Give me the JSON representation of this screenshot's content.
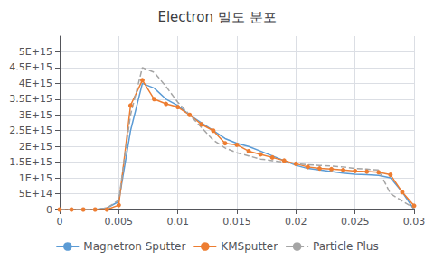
{
  "chart_data": {
    "type": "line",
    "title": "Electron 밀도 분포",
    "xlim": [
      0,
      0.03
    ],
    "xticks": [
      0,
      0.005,
      0.01,
      0.015,
      0.02,
      0.025,
      0.03
    ],
    "ylim": [
      0,
      5500000000000000.0
    ],
    "yticks": [
      0,
      {
        "value": 500000000000000.0,
        "label": "5E+14"
      },
      {
        "value": 1000000000000000.0,
        "label": "1E+15"
      },
      {
        "value": 1500000000000000.0,
        "label": "1.5E+15"
      },
      {
        "value": 2000000000000000.0,
        "label": "2E+15"
      },
      {
        "value": 2500000000000000.0,
        "label": "2.5E+15"
      },
      {
        "value": 3000000000000000.0,
        "label": "3E+15"
      },
      {
        "value": 3500000000000000.0,
        "label": "3.5E+15"
      },
      {
        "value": 4000000000000000.0,
        "label": "4E+15"
      },
      {
        "value": 4500000000000000.0,
        "label": "4.5E+15"
      },
      {
        "value": 5000000000000000.0,
        "label": "5E+15"
      }
    ],
    "grid": true,
    "legend": "bottom",
    "series": [
      {
        "name": "Magnetron Sputter",
        "color": "#5b9bd5",
        "line_style": "solid",
        "x": [
          0,
          0.001,
          0.002,
          0.003,
          0.004,
          0.005,
          0.006,
          0.007,
          0.008,
          0.009,
          0.01,
          0.011,
          0.012,
          0.013,
          0.014,
          0.015,
          0.016,
          0.017,
          0.018,
          0.019,
          0.02,
          0.021,
          0.022,
          0.023,
          0.024,
          0.025,
          0.026,
          0.027,
          0.028,
          0.029,
          0.03
        ],
        "values": [
          0,
          0,
          0,
          0,
          50000000000000.0,
          250000000000000.0,
          2500000000000000.0,
          4000000000000000.0,
          3850000000000000.0,
          3500000000000000.0,
          3300000000000000.0,
          3000000000000000.0,
          2750000000000000.0,
          2500000000000000.0,
          2250000000000000.0,
          2100000000000000.0,
          2000000000000000.0,
          1850000000000000.0,
          1700000000000000.0,
          1550000000000000.0,
          1400000000000000.0,
          1300000000000000.0,
          1250000000000000.0,
          1200000000000000.0,
          1150000000000000.0,
          1120000000000000.0,
          1100000000000000.0,
          1080000000000000.0,
          1000000000000000.0,
          550000000000000.0,
          0
        ]
      },
      {
        "name": "KMSputter",
        "color": "#ed7d31",
        "line_style": "solid",
        "marker": "circle",
        "x": [
          0,
          0.001,
          0.002,
          0.003,
          0.004,
          0.005,
          0.006,
          0.007,
          0.008,
          0.009,
          0.01,
          0.011,
          0.012,
          0.013,
          0.014,
          0.015,
          0.016,
          0.017,
          0.018,
          0.019,
          0.02,
          0.021,
          0.022,
          0.023,
          0.024,
          0.025,
          0.026,
          0.027,
          0.028,
          0.029,
          0.03
        ],
        "values": [
          0,
          0,
          0,
          0,
          0,
          140000000000000.0,
          3300000000000000.0,
          4100000000000000.0,
          3500000000000000.0,
          3350000000000000.0,
          3250000000000000.0,
          3000000000000000.0,
          2700000000000000.0,
          2500000000000000.0,
          2100000000000000.0,
          2050000000000000.0,
          1850000000000000.0,
          1750000000000000.0,
          1650000000000000.0,
          1550000000000000.0,
          1450000000000000.0,
          1350000000000000.0,
          1300000000000000.0,
          1280000000000000.0,
          1250000000000000.0,
          1220000000000000.0,
          1200000000000000.0,
          1180000000000000.0,
          1100000000000000.0,
          550000000000000.0,
          120000000000000.0
        ]
      },
      {
        "name": "Particle Plus",
        "color": "#a5a5a5",
        "line_style": "dashed",
        "x": [
          0,
          0.001,
          0.002,
          0.003,
          0.004,
          0.005,
          0.006,
          0.007,
          0.008,
          0.009,
          0.01,
          0.011,
          0.012,
          0.013,
          0.014,
          0.015,
          0.016,
          0.017,
          0.018,
          0.019,
          0.02,
          0.021,
          0.022,
          0.023,
          0.024,
          0.025,
          0.026,
          0.027,
          0.028,
          0.03
        ],
        "values": [
          0,
          0,
          0,
          0,
          50000000000000.0,
          300000000000000.0,
          3000000000000000.0,
          4500000000000000.0,
          4350000000000000.0,
          3900000000000000.0,
          3400000000000000.0,
          3000000000000000.0,
          2600000000000000.0,
          2200000000000000.0,
          1950000000000000.0,
          1800000000000000.0,
          1700000000000000.0,
          1600000000000000.0,
          1550000000000000.0,
          1500000000000000.0,
          1450000000000000.0,
          1420000000000000.0,
          1400000000000000.0,
          1380000000000000.0,
          1350000000000000.0,
          1300000000000000.0,
          1280000000000000.0,
          1250000000000000.0,
          500000000000000.0,
          40000000000000.0
        ]
      }
    ]
  }
}
